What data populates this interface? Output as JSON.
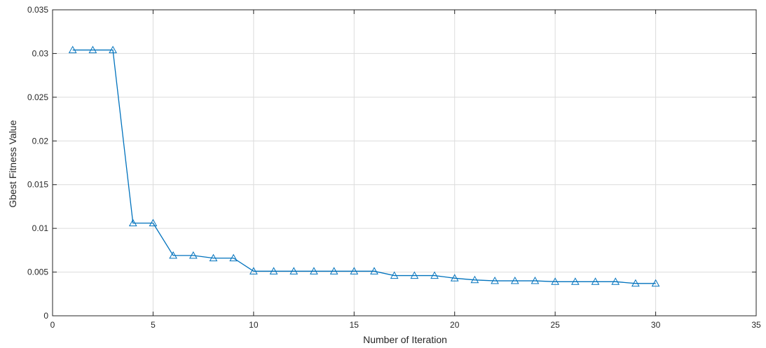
{
  "chart_data": {
    "type": "line",
    "title": "",
    "xlabel": "Number of Iteration",
    "ylabel": "Gbest Fitness Value",
    "xlim": [
      0,
      35
    ],
    "ylim": [
      0,
      0.035
    ],
    "xticks": [
      0,
      5,
      10,
      15,
      20,
      25,
      30,
      35
    ],
    "yticks": [
      0,
      0.005,
      0.01,
      0.015,
      0.02,
      0.025,
      0.03,
      0.035
    ],
    "xtick_labels": [
      "0",
      "5",
      "10",
      "15",
      "20",
      "25",
      "30",
      "35"
    ],
    "ytick_labels": [
      "0",
      "0.005",
      "0.01",
      "0.015",
      "0.02",
      "0.025",
      "0.03",
      "0.035"
    ],
    "grid": true,
    "marker": "triangle",
    "series": [
      {
        "color": "#0072BD",
        "x": [
          1,
          2,
          3,
          4,
          5,
          6,
          7,
          8,
          9,
          10,
          11,
          12,
          13,
          14,
          15,
          16,
          17,
          18,
          19,
          20,
          21,
          22,
          23,
          24,
          25,
          26,
          27,
          28,
          29,
          30
        ],
        "y": [
          0.0304,
          0.0304,
          0.0304,
          0.0106,
          0.0106,
          0.0069,
          0.0069,
          0.0066,
          0.0066,
          0.0051,
          0.0051,
          0.0051,
          0.0051,
          0.0051,
          0.0051,
          0.0051,
          0.0046,
          0.0046,
          0.0046,
          0.0043,
          0.0041,
          0.004,
          0.004,
          0.004,
          0.0039,
          0.0039,
          0.0039,
          0.0039,
          0.0037,
          0.0037
        ]
      }
    ]
  }
}
